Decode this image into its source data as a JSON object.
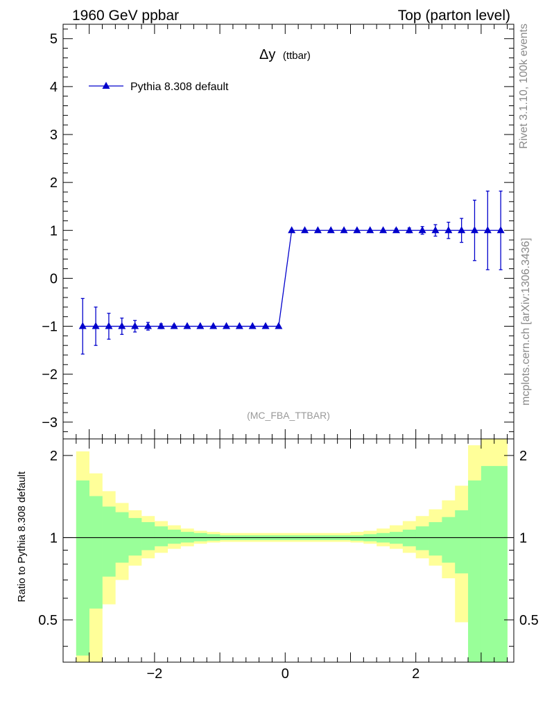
{
  "header": {
    "left": "1960 GeV ppbar",
    "right": "Top (parton level)"
  },
  "side": {
    "rivet": "Rivet 3.1.10,  100k events",
    "mcplots": "mcplots.cern.ch [arXiv:1306.3436]"
  },
  "colors": {
    "series": "#0000cc",
    "band_inner": "#99ff99",
    "band_outer": "#ffff99",
    "frame": "#000000",
    "muted_text": "#888888"
  },
  "chart_data": [
    {
      "type": "scatter",
      "title": "Δy",
      "title_suffix": "(ttbar)",
      "watermark": "(MC_FBA_TTBAR)",
      "xlim": [
        -3.4,
        3.5
      ],
      "ylim": [
        -3.35,
        5.3
      ],
      "yticks": [
        -3,
        -2,
        -1,
        0,
        1,
        2,
        3,
        4,
        5
      ],
      "legend_placement": "top-left",
      "series": [
        {
          "name": "Pythia 8.308 default",
          "marker": "triangle",
          "x": [
            -3.1,
            -2.9,
            -2.7,
            -2.5,
            -2.3,
            -2.1,
            -1.9,
            -1.7,
            -1.5,
            -1.3,
            -1.1,
            -0.9,
            -0.7,
            -0.5,
            -0.3,
            -0.1,
            0.1,
            0.3,
            0.5,
            0.7,
            0.9,
            1.1,
            1.3,
            1.5,
            1.7,
            1.9,
            2.1,
            2.3,
            2.5,
            2.7,
            2.9,
            3.1,
            3.3
          ],
          "y": [
            -1,
            -1,
            -1,
            -1,
            -1,
            -1,
            -1,
            -1,
            -1,
            -1,
            -1,
            -1,
            -1,
            -1,
            -1,
            -1,
            1,
            1,
            1,
            1,
            1,
            1,
            1,
            1,
            1,
            1,
            1,
            1,
            1,
            1,
            1,
            1,
            1
          ],
          "yerr": [
            0.58,
            0.4,
            0.27,
            0.17,
            0.12,
            0.08,
            0.05,
            0.03,
            0.02,
            0.01,
            0.005,
            0.005,
            0.005,
            0.005,
            0.005,
            0.005,
            0.005,
            0.005,
            0.005,
            0.005,
            0.005,
            0.01,
            0.01,
            0.02,
            0.03,
            0.05,
            0.08,
            0.12,
            0.17,
            0.25,
            0.63,
            0.82,
            0.82
          ]
        }
      ]
    },
    {
      "type": "area",
      "ylabel": "Ratio to Pythia 8.308 default",
      "xlim": [
        -3.4,
        3.5
      ],
      "ylim": [
        0.35,
        2.3
      ],
      "xticks": [
        -2,
        0,
        2
      ],
      "yticks": [
        0.5,
        1,
        2
      ],
      "reference_line": 1,
      "bins": [
        -3.2,
        -3.0,
        -2.8,
        -2.6,
        -2.4,
        -2.2,
        -2.0,
        -1.8,
        -1.6,
        -1.4,
        -1.2,
        -1.0,
        -0.8,
        -0.6,
        -0.4,
        -0.2,
        0.0,
        0.2,
        0.4,
        0.6,
        0.8,
        1.0,
        1.2,
        1.4,
        1.6,
        1.8,
        2.0,
        2.2,
        2.4,
        2.6,
        2.8,
        3.0,
        3.2,
        3.4
      ],
      "inner_band": {
        "upper": [
          1.62,
          1.42,
          1.3,
          1.24,
          1.18,
          1.14,
          1.1,
          1.07,
          1.05,
          1.04,
          1.03,
          1.02,
          1.02,
          1.02,
          1.02,
          1.02,
          1.02,
          1.02,
          1.02,
          1.02,
          1.02,
          1.02,
          1.03,
          1.04,
          1.05,
          1.07,
          1.1,
          1.14,
          1.19,
          1.26,
          1.62,
          1.83,
          1.83
        ],
        "lower": [
          0.37,
          0.55,
          0.72,
          0.81,
          0.86,
          0.9,
          0.93,
          0.95,
          0.96,
          0.97,
          0.975,
          0.98,
          0.98,
          0.98,
          0.98,
          0.98,
          0.98,
          0.98,
          0.98,
          0.98,
          0.98,
          0.975,
          0.97,
          0.96,
          0.95,
          0.93,
          0.9,
          0.86,
          0.81,
          0.74,
          0.3,
          0.3,
          0.3
        ]
      },
      "outer_band": {
        "upper": [
          2.07,
          1.72,
          1.48,
          1.34,
          1.26,
          1.2,
          1.15,
          1.11,
          1.08,
          1.06,
          1.05,
          1.04,
          1.04,
          1.04,
          1.04,
          1.04,
          1.04,
          1.04,
          1.04,
          1.04,
          1.04,
          1.05,
          1.06,
          1.08,
          1.11,
          1.15,
          1.2,
          1.27,
          1.37,
          1.55,
          2.18,
          2.4,
          2.4
        ],
        "lower": [
          0.3,
          0.3,
          0.57,
          0.7,
          0.79,
          0.84,
          0.88,
          0.91,
          0.93,
          0.95,
          0.96,
          0.965,
          0.965,
          0.965,
          0.965,
          0.965,
          0.965,
          0.965,
          0.965,
          0.965,
          0.965,
          0.96,
          0.95,
          0.93,
          0.91,
          0.88,
          0.84,
          0.79,
          0.71,
          0.49,
          0.3,
          0.3,
          0.3
        ]
      }
    }
  ]
}
